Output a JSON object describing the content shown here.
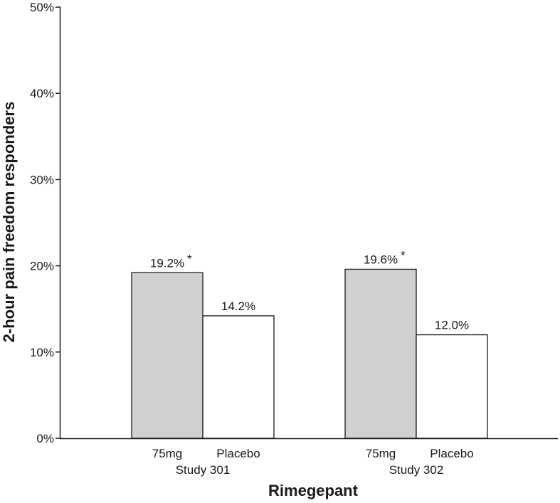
{
  "chart_data": {
    "type": "bar",
    "title": "",
    "xlabel": "Rimegepant",
    "ylabel": "2-hour pain freedom responders",
    "ylim": [
      0,
      50
    ],
    "yticks": [
      "0%",
      "10%",
      "20%",
      "30%",
      "40%",
      "50%"
    ],
    "ytick_values": [
      0,
      10,
      20,
      30,
      40,
      50
    ],
    "grid": false,
    "groups": [
      {
        "name": "Study 301",
        "bars": [
          {
            "category": "75mg",
            "value": 19.2,
            "label": "19.2%",
            "marker": "*",
            "fill": "#d0d0d0"
          },
          {
            "category": "Placebo",
            "value": 14.2,
            "label": "14.2%",
            "marker": "",
            "fill": "#ffffff"
          }
        ]
      },
      {
        "name": "Study 302",
        "bars": [
          {
            "category": "75mg",
            "value": 19.6,
            "label": "19.6%",
            "marker": "*",
            "fill": "#d0d0d0"
          },
          {
            "category": "Placebo",
            "value": 12.0,
            "label": "12.0%",
            "marker": "",
            "fill": "#ffffff"
          }
        ]
      }
    ]
  }
}
